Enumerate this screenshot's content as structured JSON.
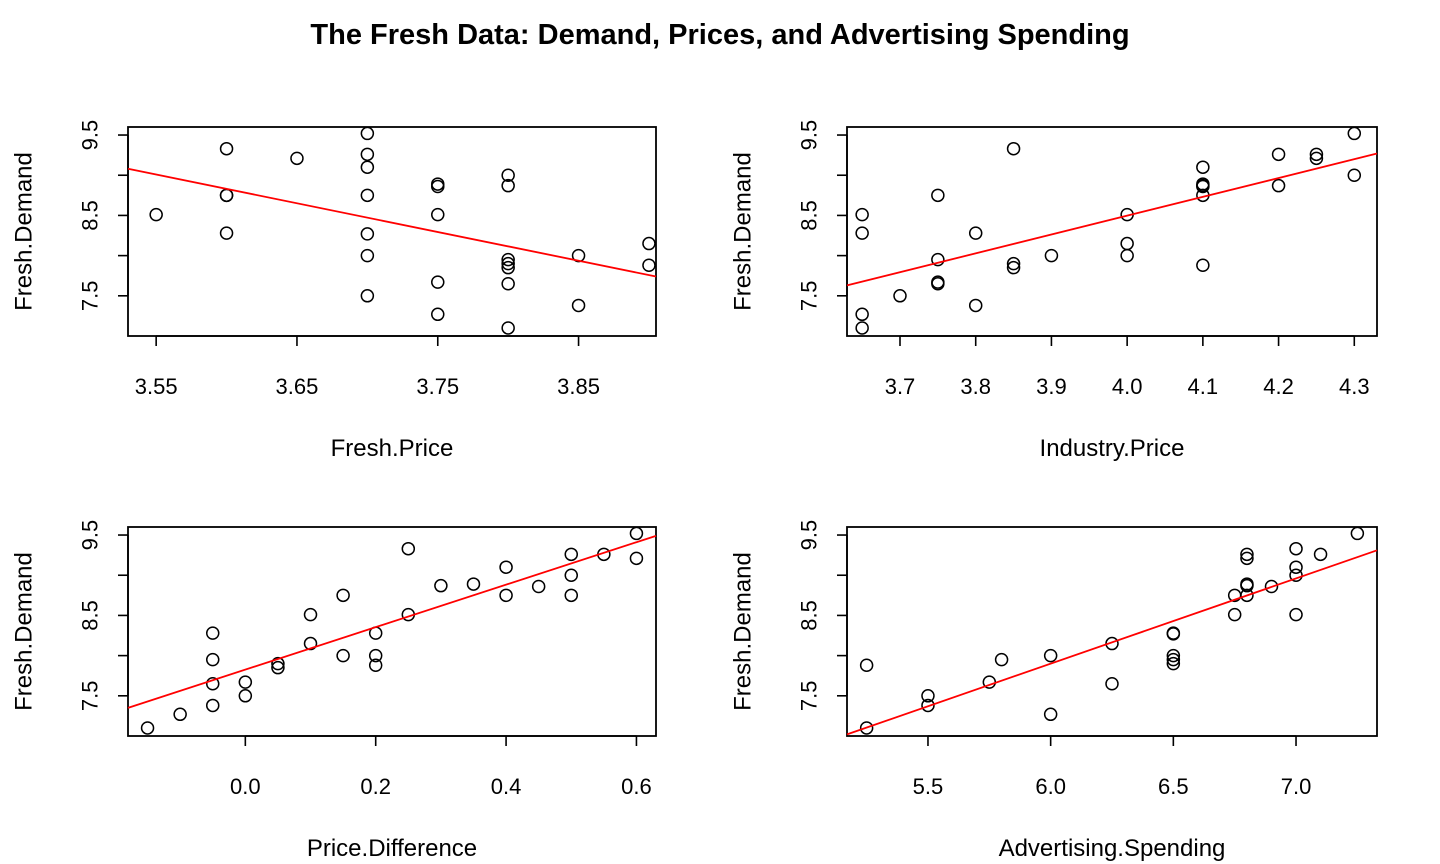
{
  "title": "The Fresh Data: Demand, Prices, and Advertising Spending",
  "chart_data": [
    {
      "type": "scatter",
      "xlabel": "Fresh.Price",
      "ylabel": "Fresh.Demand",
      "xlim": [
        3.53,
        3.905
      ],
      "ylim": [
        7.0,
        9.6
      ],
      "xticks": [
        "3.55",
        "3.65",
        "3.75",
        "3.85"
      ],
      "yticks": [
        "7.5",
        "8.5",
        "9.5"
      ],
      "grid": false,
      "line_color": "#ff0000",
      "regression": {
        "x0": 3.53,
        "y0": 9.08,
        "x1": 3.905,
        "y1": 7.74
      },
      "points": [
        [
          3.55,
          8.51
        ],
        [
          3.6,
          9.33
        ],
        [
          3.6,
          8.75
        ],
        [
          3.6,
          8.75
        ],
        [
          3.6,
          8.28
        ],
        [
          3.65,
          9.21
        ],
        [
          3.7,
          9.52
        ],
        [
          3.7,
          9.26
        ],
        [
          3.7,
          9.1
        ],
        [
          3.7,
          8.75
        ],
        [
          3.7,
          8.27
        ],
        [
          3.7,
          8.0
        ],
        [
          3.7,
          7.5
        ],
        [
          3.75,
          8.89
        ],
        [
          3.75,
          8.86
        ],
        [
          3.75,
          8.51
        ],
        [
          3.75,
          7.67
        ],
        [
          3.75,
          7.27
        ],
        [
          3.8,
          9.0
        ],
        [
          3.8,
          8.87
        ],
        [
          3.8,
          7.95
        ],
        [
          3.8,
          7.9
        ],
        [
          3.8,
          7.85
        ],
        [
          3.8,
          7.65
        ],
        [
          3.8,
          7.1
        ],
        [
          3.85,
          8.0
        ],
        [
          3.85,
          7.38
        ],
        [
          3.9,
          8.15
        ],
        [
          3.9,
          7.88
        ]
      ]
    },
    {
      "type": "scatter",
      "xlabel": "Industry.Price",
      "ylabel": "Fresh.Demand",
      "xlim": [
        3.63,
        4.33
      ],
      "ylim": [
        7.0,
        9.6
      ],
      "xticks": [
        "3.7",
        "3.8",
        "3.9",
        "4.0",
        "4.1",
        "4.2",
        "4.3"
      ],
      "yticks": [
        "7.5",
        "8.5",
        "9.5"
      ],
      "grid": false,
      "line_color": "#ff0000",
      "regression": {
        "x0": 3.63,
        "y0": 7.63,
        "x1": 4.33,
        "y1": 9.27
      },
      "points": [
        [
          3.65,
          8.51
        ],
        [
          3.65,
          8.28
        ],
        [
          3.65,
          7.27
        ],
        [
          3.65,
          7.1
        ],
        [
          3.7,
          7.5
        ],
        [
          3.75,
          8.75
        ],
        [
          3.75,
          7.95
        ],
        [
          3.75,
          7.65
        ],
        [
          3.75,
          7.67
        ],
        [
          3.8,
          8.28
        ],
        [
          3.8,
          7.38
        ],
        [
          3.85,
          9.33
        ],
        [
          3.85,
          7.9
        ],
        [
          3.85,
          7.85
        ],
        [
          3.9,
          8.0
        ],
        [
          4.0,
          8.51
        ],
        [
          4.0,
          8.15
        ],
        [
          4.0,
          8.0
        ],
        [
          4.1,
          9.1
        ],
        [
          4.1,
          8.89
        ],
        [
          4.1,
          8.87
        ],
        [
          4.1,
          8.86
        ],
        [
          4.1,
          8.75
        ],
        [
          4.1,
          7.88
        ],
        [
          4.2,
          9.26
        ],
        [
          4.2,
          8.87
        ],
        [
          4.25,
          9.26
        ],
        [
          4.25,
          9.21
        ],
        [
          4.3,
          9.52
        ],
        [
          4.3,
          9.0
        ]
      ]
    },
    {
      "type": "scatter",
      "xlabel": "Price.Difference",
      "ylabel": "Fresh.Demand",
      "xlim": [
        -0.18,
        0.63
      ],
      "ylim": [
        7.0,
        9.6
      ],
      "xticks": [
        "0.0",
        "0.2",
        "0.4",
        "0.6"
      ],
      "yticks": [
        "7.5",
        "8.5",
        "9.5"
      ],
      "grid": false,
      "line_color": "#ff0000",
      "regression": {
        "x0": -0.18,
        "y0": 7.35,
        "x1": 0.63,
        "y1": 9.49
      },
      "points": [
        [
          -0.15,
          7.1
        ],
        [
          -0.1,
          7.27
        ],
        [
          -0.05,
          8.28
        ],
        [
          -0.05,
          7.95
        ],
        [
          -0.05,
          7.65
        ],
        [
          -0.05,
          7.38
        ],
        [
          0.0,
          7.67
        ],
        [
          0.0,
          7.5
        ],
        [
          0.05,
          7.9
        ],
        [
          0.05,
          7.85
        ],
        [
          0.1,
          8.51
        ],
        [
          0.1,
          8.15
        ],
        [
          0.15,
          8.75
        ],
        [
          0.15,
          8.0
        ],
        [
          0.2,
          8.28
        ],
        [
          0.2,
          8.0
        ],
        [
          0.2,
          7.88
        ],
        [
          0.25,
          9.33
        ],
        [
          0.25,
          8.51
        ],
        [
          0.3,
          8.87
        ],
        [
          0.35,
          8.89
        ],
        [
          0.4,
          9.1
        ],
        [
          0.4,
          8.75
        ],
        [
          0.45,
          8.86
        ],
        [
          0.5,
          9.26
        ],
        [
          0.5,
          9.0
        ],
        [
          0.5,
          8.75
        ],
        [
          0.55,
          9.26
        ],
        [
          0.6,
          9.52
        ],
        [
          0.6,
          9.21
        ]
      ]
    },
    {
      "type": "scatter",
      "xlabel": "Advertising.Spending",
      "ylabel": "Fresh.Demand",
      "xlim": [
        5.17,
        7.33
      ],
      "ylim": [
        7.0,
        9.6
      ],
      "xticks": [
        "5.5",
        "6.0",
        "6.5",
        "7.0"
      ],
      "yticks": [
        "7.5",
        "8.5",
        "9.5"
      ],
      "grid": false,
      "line_color": "#ff0000",
      "regression": {
        "x0": 5.17,
        "y0": 7.02,
        "x1": 7.33,
        "y1": 9.31
      },
      "points": [
        [
          5.25,
          7.88
        ],
        [
          5.25,
          7.1
        ],
        [
          5.5,
          7.5
        ],
        [
          5.5,
          7.38
        ],
        [
          5.75,
          7.67
        ],
        [
          5.8,
          7.95
        ],
        [
          6.0,
          8.0
        ],
        [
          6.0,
          7.27
        ],
        [
          6.25,
          8.15
        ],
        [
          6.25,
          7.65
        ],
        [
          6.5,
          8.28
        ],
        [
          6.5,
          8.27
        ],
        [
          6.5,
          8.0
        ],
        [
          6.5,
          7.95
        ],
        [
          6.5,
          7.9
        ],
        [
          6.75,
          8.75
        ],
        [
          6.75,
          8.51
        ],
        [
          6.8,
          9.26
        ],
        [
          6.8,
          9.21
        ],
        [
          6.8,
          8.89
        ],
        [
          6.8,
          8.87
        ],
        [
          6.8,
          8.75
        ],
        [
          6.9,
          8.86
        ],
        [
          7.0,
          9.33
        ],
        [
          7.0,
          9.1
        ],
        [
          7.0,
          9.0
        ],
        [
          7.0,
          8.51
        ],
        [
          7.1,
          9.26
        ],
        [
          7.25,
          9.52
        ]
      ]
    }
  ]
}
